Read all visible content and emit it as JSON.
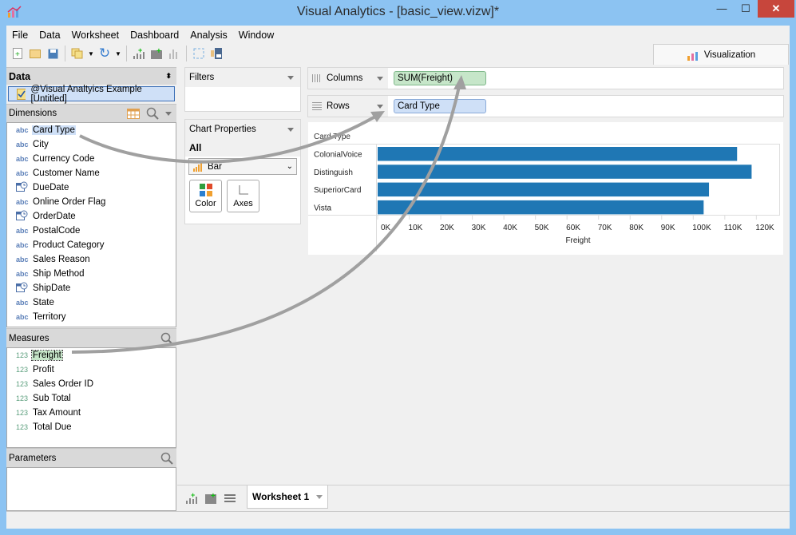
{
  "window": {
    "title": "Visual Analytics - [basic_view.vizw]*",
    "minimize": "—",
    "maximize": "☐",
    "close": "✕"
  },
  "menu": [
    "File",
    "Data",
    "Worksheet",
    "Dashboard",
    "Analysis",
    "Window"
  ],
  "toolbar_icons": [
    "new-file-icon",
    "open-folder-icon",
    "save-icon",
    "datasource-icon",
    "dropdown-icon",
    "refresh-icon",
    "dropdown-icon",
    "new-worksheet-icon",
    "new-dashboard-icon",
    "chart-icon",
    "swap-icon",
    "fit-icon"
  ],
  "viz_tab": {
    "label": "Visualization"
  },
  "data_panel": {
    "title": "Data",
    "datasource": "@Visual Analtyics Example [Untitled]",
    "dimensions_label": "Dimensions",
    "dimensions": [
      {
        "type": "abc",
        "name": "Card Type",
        "selected": true
      },
      {
        "type": "abc",
        "name": "City"
      },
      {
        "type": "abc",
        "name": "Currency Code"
      },
      {
        "type": "abc",
        "name": "Customer Name"
      },
      {
        "type": "date",
        "name": "DueDate"
      },
      {
        "type": "abc",
        "name": "Online Order Flag"
      },
      {
        "type": "date",
        "name": "OrderDate"
      },
      {
        "type": "abc",
        "name": "PostalCode"
      },
      {
        "type": "abc",
        "name": "Product Category"
      },
      {
        "type": "abc",
        "name": "Sales Reason"
      },
      {
        "type": "abc",
        "name": "Ship Method"
      },
      {
        "type": "date",
        "name": "ShipDate"
      },
      {
        "type": "abc",
        "name": "State"
      },
      {
        "type": "abc",
        "name": "Territory"
      }
    ],
    "measures_label": "Measures",
    "measures": [
      {
        "type": "123",
        "name": "Freight",
        "selected": true
      },
      {
        "type": "123",
        "name": "Profit"
      },
      {
        "type": "123",
        "name": "Sales Order ID"
      },
      {
        "type": "123",
        "name": "Sub Total"
      },
      {
        "type": "123",
        "name": "Tax Amount"
      },
      {
        "type": "123",
        "name": "Total Due"
      }
    ],
    "parameters_label": "Parameters"
  },
  "filters": {
    "title": "Filters"
  },
  "chart_properties": {
    "title": "Chart Properties",
    "all_label": "All",
    "chart_type": "Bar",
    "color_label": "Color",
    "axes_label": "Axes"
  },
  "shelves": {
    "columns_label": "Columns",
    "columns_pill": "SUM(Freight)",
    "rows_label": "Rows",
    "rows_pill": "Card Type"
  },
  "colors": {
    "bar": "#1f77b4",
    "columns_pill": "#c6e6c9",
    "rows_pill": "#cfe0f7"
  },
  "chart_data": {
    "type": "bar",
    "orientation": "horizontal",
    "categories": [
      "ColonialVoice",
      "Distinguish",
      "SuperiorCard",
      "Vista"
    ],
    "values": [
      113900,
      118500,
      105000,
      103300
    ],
    "ylabel": "Card Type",
    "xlabel": "Freight",
    "xticks": [
      "0K",
      "10K",
      "20K",
      "30K",
      "40K",
      "50K",
      "60K",
      "70K",
      "80K",
      "90K",
      "100K",
      "110K",
      "120K"
    ],
    "xlim": [
      0,
      127000
    ],
    "grid": false
  },
  "worksheet_tabs": [
    {
      "label": "Worksheet 1",
      "active": true
    }
  ]
}
